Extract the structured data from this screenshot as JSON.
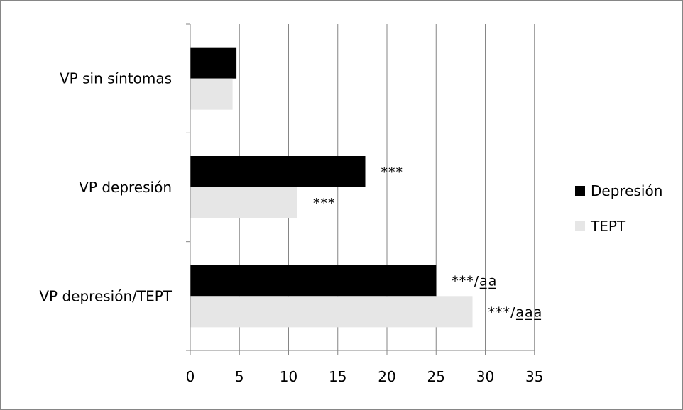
{
  "chart_data": {
    "type": "bar",
    "orientation": "horizontal",
    "categories": [
      "VP sin síntomas",
      "VP depresión",
      "VP depresión/TEPT"
    ],
    "series": [
      {
        "name": "Depresión",
        "values": [
          4.7,
          17.8,
          25.0
        ],
        "color": "#000000"
      },
      {
        "name": "TEPT",
        "values": [
          4.3,
          10.9,
          28.7
        ],
        "color": "#e6e6e6"
      }
    ],
    "annotations": [
      {
        "series": 0,
        "category": 1,
        "text": "***"
      },
      {
        "series": 1,
        "category": 1,
        "text": "***"
      },
      {
        "series": 0,
        "category": 2,
        "text": "***/a̲a̲"
      },
      {
        "series": 1,
        "category": 2,
        "text": "***/a̲a̲a̲"
      }
    ],
    "xlim": [
      0,
      35
    ],
    "xticks": [
      0,
      5,
      10,
      15,
      20,
      25,
      30,
      35
    ],
    "grid": true,
    "legend": "right"
  }
}
